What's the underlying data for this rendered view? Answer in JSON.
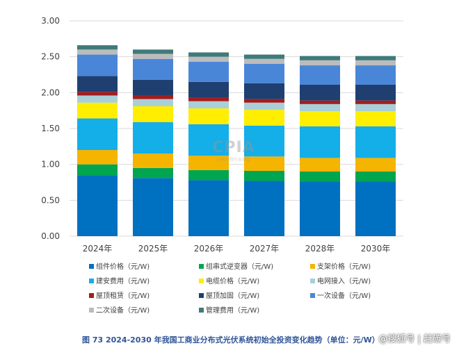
{
  "chart_data": {
    "type": "bar",
    "stacked": true,
    "categories": [
      "2024年",
      "2025年",
      "2026年",
      "2027年",
      "2028年",
      "2030年"
    ],
    "ylim": [
      0,
      3.0
    ],
    "yticks": [
      "0.00",
      "0.50",
      "1.00",
      "1.50",
      "2.00",
      "2.50",
      "3.00"
    ],
    "grid": true,
    "legend_position": "bottom",
    "series": [
      {
        "name": "组件价格（元/W)",
        "color": "#0070c0",
        "values": [
          0.85,
          0.81,
          0.78,
          0.77,
          0.76,
          0.76
        ]
      },
      {
        "name": "组串式逆变器（元/W)",
        "color": "#00a550",
        "values": [
          0.15,
          0.14,
          0.14,
          0.14,
          0.14,
          0.14
        ]
      },
      {
        "name": "支架价格（元/W)",
        "color": "#f4b400",
        "values": [
          0.2,
          0.2,
          0.2,
          0.2,
          0.19,
          0.19
        ]
      },
      {
        "name": "建安费用（元/W)",
        "color": "#14aee8",
        "values": [
          0.44,
          0.44,
          0.44,
          0.43,
          0.44,
          0.44
        ]
      },
      {
        "name": "电缆价格（元/W)",
        "color": "#ffee00",
        "values": [
          0.22,
          0.22,
          0.22,
          0.22,
          0.21,
          0.21
        ]
      },
      {
        "name": "电网接入（元/W)",
        "color": "#a9cfd9",
        "values": [
          0.1,
          0.1,
          0.1,
          0.1,
          0.1,
          0.1
        ]
      },
      {
        "name": "屋顶租赁（元/W)",
        "color": "#a31d1d",
        "values": [
          0.05,
          0.05,
          0.05,
          0.05,
          0.05,
          0.05
        ]
      },
      {
        "name": "屋顶加固（元/W)",
        "color": "#1f3f70",
        "values": [
          0.22,
          0.22,
          0.22,
          0.22,
          0.22,
          0.22
        ]
      },
      {
        "name": "一次设备（元/W)",
        "color": "#4a86d8",
        "values": [
          0.3,
          0.29,
          0.28,
          0.27,
          0.27,
          0.27
        ]
      },
      {
        "name": "二次设备（元/W)",
        "color": "#bcbcbc",
        "values": [
          0.07,
          0.07,
          0.07,
          0.07,
          0.07,
          0.07
        ]
      },
      {
        "name": "管理费用（元/W)",
        "color": "#3f7a7a",
        "values": [
          0.06,
          0.06,
          0.06,
          0.06,
          0.06,
          0.06
        ]
      }
    ]
  },
  "caption": "图 73   2024-2030 年我国工商业分布式光伏系统初始全投资变化趋势（单位：元/W）",
  "watermark": {
    "center_big": "CPIA",
    "center_small": "中国光伏行业协会",
    "source": "@搜狐号 | 赶碳号"
  }
}
